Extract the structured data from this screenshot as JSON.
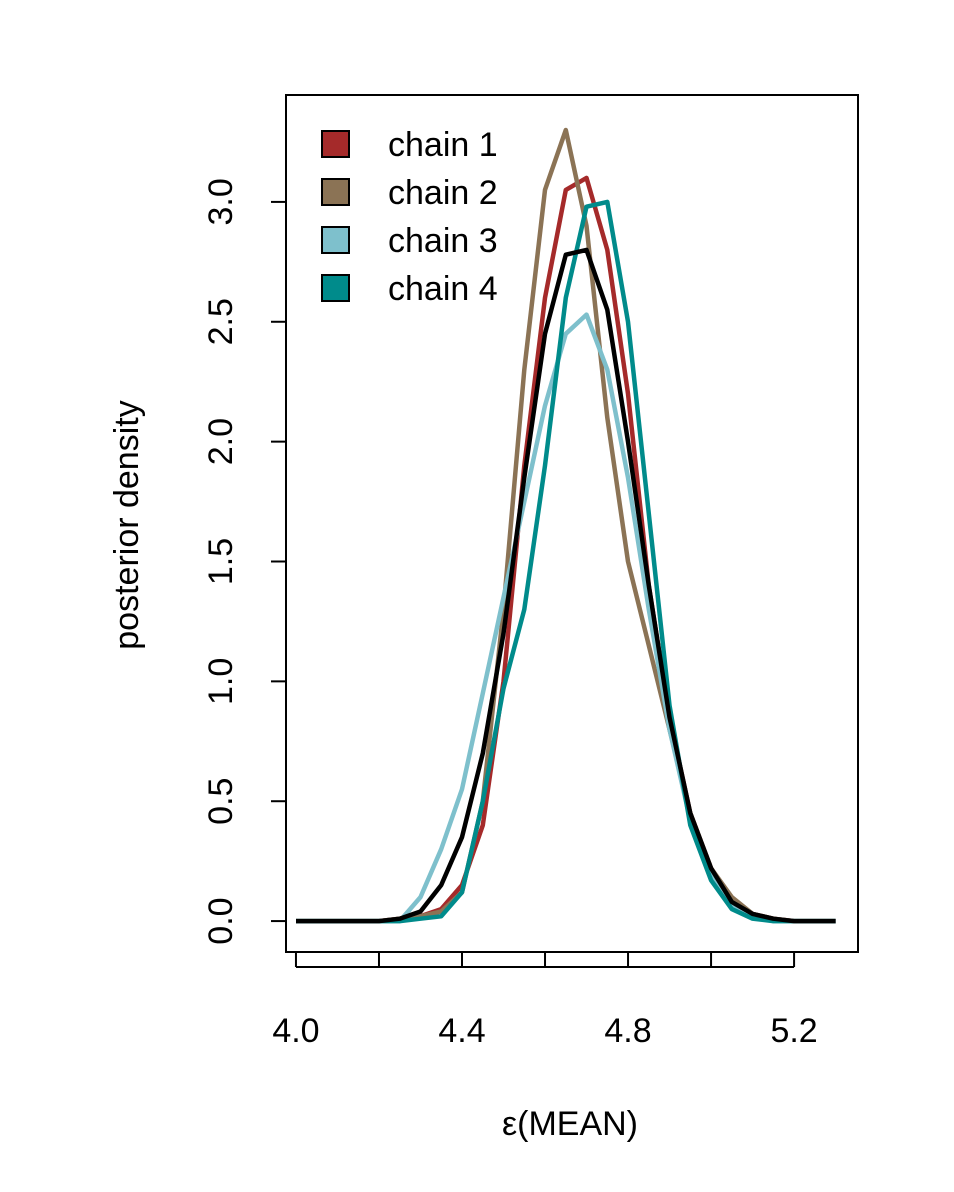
{
  "chart_data": {
    "type": "line",
    "xlabel": "ε(MEAN)",
    "ylabel": "posterior density",
    "x": [
      4.0,
      4.05,
      4.1,
      4.15,
      4.2,
      4.25,
      4.3,
      4.35,
      4.4,
      4.45,
      4.5,
      4.55,
      4.6,
      4.65,
      4.7,
      4.75,
      4.8,
      4.85,
      4.9,
      4.95,
      5.0,
      5.05,
      5.1,
      5.15,
      5.2,
      5.25,
      5.3
    ],
    "series": [
      {
        "name": "chain 1",
        "color": "#a52a2a",
        "values": [
          0,
          0,
          0,
          0,
          0,
          0.01,
          0.02,
          0.05,
          0.15,
          0.4,
          1.0,
          1.9,
          2.6,
          3.05,
          3.1,
          2.8,
          2.2,
          1.4,
          0.85,
          0.45,
          0.22,
          0.09,
          0.03,
          0.01,
          0,
          0,
          0
        ]
      },
      {
        "name": "chain 2",
        "color": "#8b7355",
        "values": [
          0,
          0,
          0,
          0,
          0,
          0.01,
          0.02,
          0.04,
          0.12,
          0.5,
          1.3,
          2.3,
          3.05,
          3.3,
          2.9,
          2.1,
          1.5,
          1.15,
          0.8,
          0.45,
          0.22,
          0.1,
          0.03,
          0.01,
          0,
          0,
          0
        ]
      },
      {
        "name": "chain 3",
        "color": "#7ec0cc",
        "values": [
          0,
          0,
          0,
          0,
          0,
          0,
          0.1,
          0.3,
          0.55,
          0.95,
          1.35,
          1.75,
          2.15,
          2.45,
          2.53,
          2.3,
          1.85,
          1.3,
          0.8,
          0.42,
          0.2,
          0.07,
          0.02,
          0,
          0,
          0,
          0
        ]
      },
      {
        "name": "chain 4",
        "color": "#008b8b",
        "values": [
          0,
          0,
          0,
          0,
          0,
          0,
          0.01,
          0.02,
          0.12,
          0.5,
          0.97,
          1.3,
          1.9,
          2.6,
          2.98,
          3.0,
          2.5,
          1.7,
          0.9,
          0.4,
          0.17,
          0.05,
          0.01,
          0,
          0,
          0,
          0
        ]
      },
      {
        "color": "#000000",
        "values": [
          0,
          0,
          0,
          0,
          0,
          0.01,
          0.04,
          0.15,
          0.35,
          0.7,
          1.2,
          1.85,
          2.45,
          2.78,
          2.8,
          2.55,
          2.0,
          1.4,
          0.85,
          0.45,
          0.22,
          0.08,
          0.03,
          0.01,
          0,
          0,
          0
        ]
      }
    ],
    "xlim": [
      3.976,
      5.354
    ],
    "ylim": [
      -0.129,
      3.446
    ],
    "xticks": [
      {
        "value": 4.0,
        "label": "4.0"
      },
      {
        "value": 4.2,
        "label": null
      },
      {
        "value": 4.4,
        "label": "4.4"
      },
      {
        "value": 4.6,
        "label": null
      },
      {
        "value": 4.8,
        "label": "4.8"
      },
      {
        "value": 5.0,
        "label": null
      },
      {
        "value": 5.2,
        "label": "5.2"
      }
    ],
    "yticks": [
      {
        "value": 0,
        "label": "0.0"
      },
      {
        "value": 0.5,
        "label": "0.5"
      },
      {
        "value": 1,
        "label": "1.0"
      },
      {
        "value": 1.5,
        "label": "1.5"
      },
      {
        "value": 2,
        "label": "2.0"
      },
      {
        "value": 2.5,
        "label": "2.5"
      },
      {
        "value": 3,
        "label": "3.0"
      }
    ],
    "legend": "top-left"
  }
}
